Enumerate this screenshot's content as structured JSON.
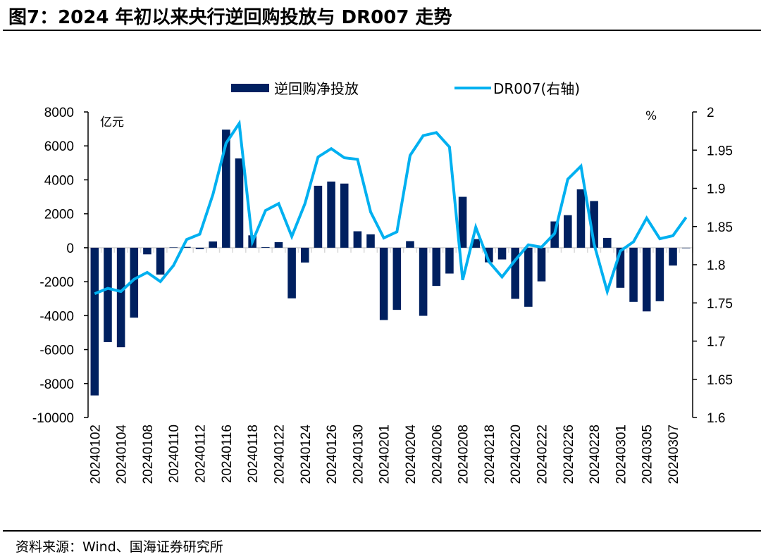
{
  "title": "图7：2024 年初以来央行逆回购投放与 DR007 走势",
  "source": "资料来源：Wind、国海证券研究所",
  "colors": {
    "bar": "#002060",
    "line": "#00B0F0",
    "zero_line": "#D9D9D9",
    "axis": "#000000"
  },
  "chart_data": {
    "type": "bar+line",
    "title": "2024 年初以来央行逆回购投放与 DR007 走势",
    "legend": {
      "position": "top",
      "entries": [
        "逆回购净投放",
        "DR007(右轴)"
      ]
    },
    "left_axis": {
      "unit_label": "亿元",
      "range": [
        -10000,
        8000
      ],
      "ticks": [
        8000,
        6000,
        4000,
        2000,
        0,
        -2000,
        -4000,
        -6000,
        -8000,
        -10000
      ]
    },
    "right_axis": {
      "unit_label": "%",
      "range": [
        1.6,
        2.0
      ],
      "ticks": [
        "2",
        "1.95",
        "1.9",
        "1.85",
        "1.8",
        "1.75",
        "1.7",
        "1.65",
        "1.6"
      ]
    },
    "grid": false,
    "categories": [
      "20240102",
      "20240103",
      "20240104",
      "20240105",
      "20240108",
      "20240109",
      "20240110",
      "20240111",
      "20240112",
      "20240115",
      "20240116",
      "20240117",
      "20240118",
      "20240119",
      "20240122",
      "20240123",
      "20240124",
      "20240125",
      "20240126",
      "20240129",
      "20240130",
      "20240131",
      "20240201",
      "20240202",
      "20240204",
      "20240205",
      "20240206",
      "20240207",
      "20240208",
      "20240209",
      "20240218",
      "20240219",
      "20240220",
      "20240221",
      "20240222",
      "20240223",
      "20240226",
      "20240227",
      "20240228",
      "20240229",
      "20240301",
      "20240304",
      "20240305",
      "20240306",
      "20240307",
      "20240308"
    ],
    "shown_tick_labels": [
      "20240102",
      "20240104",
      "20240108",
      "20240110",
      "20240112",
      "20240116",
      "20240118",
      "20240122",
      "20240124",
      "20240126",
      "20240130",
      "20240201",
      "20240204",
      "20240206",
      "20240208",
      "20240218",
      "20240220",
      "20240222",
      "20240226",
      "20240228",
      "20240301",
      "20240305",
      "20240307"
    ],
    "series": [
      {
        "name": "逆回购净投放",
        "type": "bar",
        "axis": "left",
        "values": [
          -8700,
          -5560,
          -5860,
          -4120,
          -390,
          -1580,
          20,
          50,
          -80,
          370,
          6960,
          5260,
          730,
          40,
          330,
          -2980,
          -870,
          3650,
          3900,
          3780,
          970,
          790,
          -4260,
          -3660,
          390,
          -4010,
          -2250,
          -1520,
          3000,
          510,
          -860,
          -690,
          -3010,
          -3480,
          -1980,
          1550,
          1920,
          3440,
          2750,
          580,
          -2360,
          -3190,
          -3750,
          -3150,
          -1050,
          0
        ]
      },
      {
        "name": "DR007(右轴)",
        "type": "line",
        "axis": "right",
        "values": [
          1.762,
          1.769,
          1.765,
          1.781,
          1.79,
          1.778,
          1.799,
          1.833,
          1.84,
          1.892,
          1.959,
          1.985,
          1.83,
          1.871,
          1.88,
          1.837,
          1.88,
          1.941,
          1.952,
          1.94,
          1.938,
          1.869,
          1.835,
          1.843,
          1.943,
          1.969,
          1.973,
          1.954,
          1.78,
          1.849,
          1.804,
          1.784,
          1.806,
          1.826,
          1.823,
          1.841,
          1.912,
          1.929,
          1.827,
          1.765,
          1.818,
          1.83,
          1.861,
          1.834,
          1.838,
          1.862
        ]
      }
    ]
  }
}
